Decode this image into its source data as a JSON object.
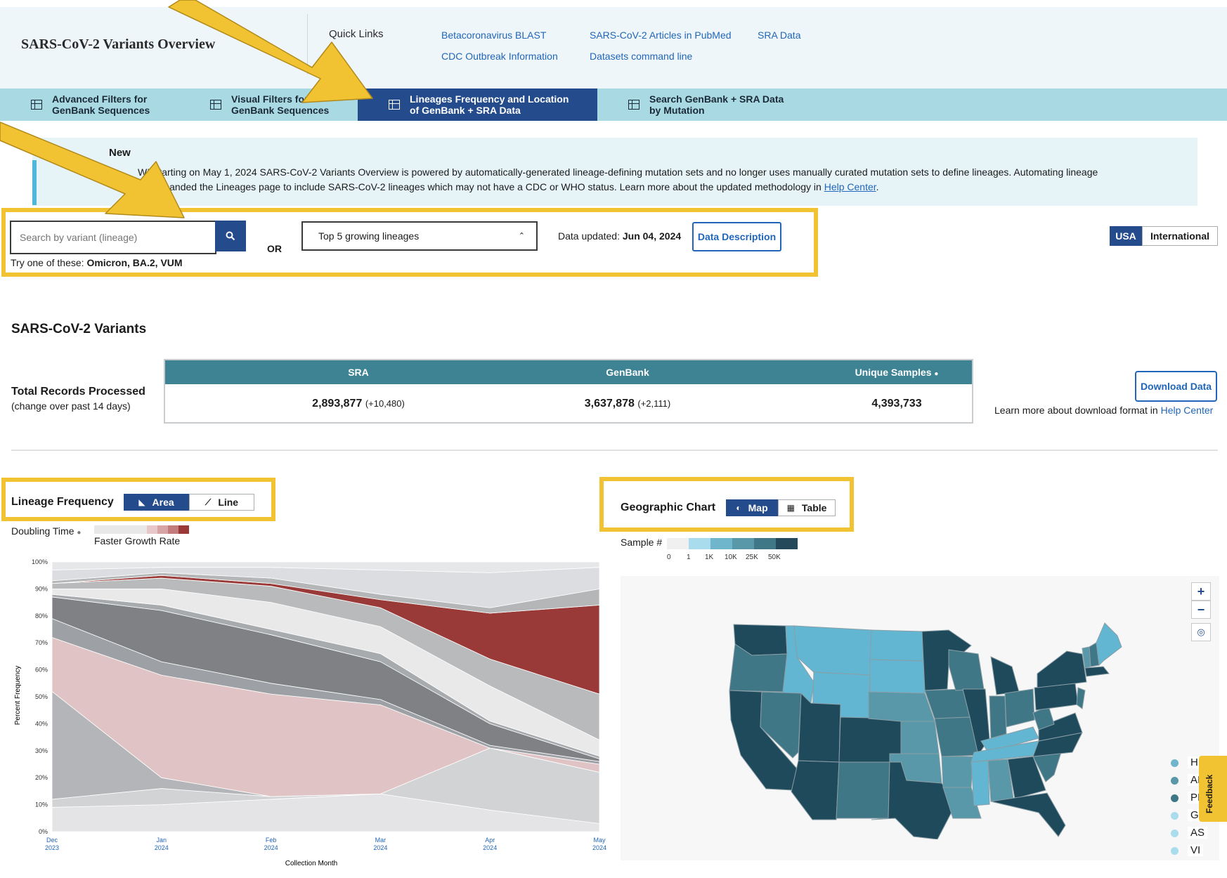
{
  "header": {
    "app_title": "SARS-CoV-2 Variants Overview",
    "quick_links_label": "Quick Links",
    "quick_links": [
      "Betacoronavirus BLAST",
      "SARS-CoV-2 Articles in PubMed",
      "SRA Data",
      "CDC Outbreak Information",
      "Datasets command line"
    ]
  },
  "tabs": [
    {
      "line1": "Advanced Filters for",
      "line2": "GenBank Sequences",
      "active": false
    },
    {
      "line1": "Visual Filters for",
      "line2": "GenBank Sequences",
      "active": false
    },
    {
      "line1": "Lineages Frequency and Location",
      "line2": "of GenBank + SRA Data",
      "active": true
    },
    {
      "line1": "Search GenBank + SRA Data",
      "line2": "by Mutation",
      "active": false
    }
  ],
  "notice": {
    "title": "New",
    "line1": "W! Starting on May 1, 2024 SARS-CoV-2 Variants Overview is powered by automatically-generated lineage-defining mutation sets and no longer uses manually curated mutation sets to define lineages. Automating lineage",
    "line2_prefix": "ion expanded the Lineages page to include SARS-CoV-2 lineages which may not have a CDC or WHO status. Learn more about the updated methodology in",
    "help_link": "Help Center",
    "line2_suffix": "."
  },
  "search": {
    "placeholder": "Search by variant (lineage)",
    "try_prefix": "Try one of these:",
    "try_examples": "Omicron, BA.2, VUM",
    "or_label": "OR",
    "select_value": "Top 5 growing lineages",
    "data_updated_label": "Data updated:",
    "data_updated_value": "Jun 04, 2024",
    "data_description_label": "Data Description"
  },
  "region_toggle": {
    "usa": "USA",
    "international": "International"
  },
  "summary": {
    "heading": "SARS-CoV-2 Variants",
    "row_label": "Total Records Processed",
    "row_sublabel": "(change over past 14 days)",
    "columns": [
      {
        "header": "SRA",
        "value": "2,893,877",
        "delta": "(+10,480)"
      },
      {
        "header": "GenBank",
        "value": "3,637,878",
        "delta": "(+2,111)"
      },
      {
        "header": "Unique Samples",
        "value": "4,393,733",
        "delta": ""
      }
    ],
    "download_label": "Download Data",
    "download_note_prefix": "Learn more about download format in",
    "download_note_link": "Help Center"
  },
  "lineage_frequency": {
    "title": "Lineage Frequency",
    "area_label": "Area",
    "line_label": "Line",
    "doubling_label": "Doubling Time",
    "faster_label": "Faster Growth Rate"
  },
  "geographic": {
    "title": "Geographic Chart",
    "map_label": "Map",
    "table_label": "Table",
    "sample_label": "Sample #",
    "legend_ticks": [
      "0",
      "1",
      "1K",
      "10K",
      "25K",
      "50K"
    ],
    "legend_colors": [
      "#f0f0f0",
      "#a9dcec",
      "#6fb6cc",
      "#5998a9",
      "#3f7787",
      "#23495a"
    ],
    "territories": [
      "H",
      "AI",
      "PI",
      "GU",
      "AS",
      "VI"
    ],
    "feedback_label": "Feedback"
  },
  "chart_data": {
    "type": "area",
    "xlabel": "Collection Month",
    "ylabel": "Percent Frequency",
    "x": [
      "Dec 2023",
      "Jan 2024",
      "Feb 2024",
      "Mar 2024",
      "Apr 2024",
      "May 2024"
    ],
    "x_ticks": [
      [
        "Dec",
        "2023"
      ],
      [
        "Jan",
        "2024"
      ],
      [
        "Feb",
        "2024"
      ],
      [
        "Mar",
        "2024"
      ],
      [
        "Apr",
        "2024"
      ],
      [
        "May",
        "2024"
      ]
    ],
    "y_ticks": [
      "100%",
      "90%",
      "80%",
      "70%",
      "60%",
      "50%",
      "40%",
      "30%",
      "20%",
      "10%",
      "0%"
    ],
    "ylim": [
      0,
      100
    ],
    "stacked_boundaries_percent": [
      [
        9,
        10,
        12,
        14,
        8,
        3
      ],
      [
        12,
        16,
        13,
        15,
        31,
        22
      ],
      [
        52,
        20,
        13,
        14,
        31,
        22
      ],
      [
        72,
        58,
        51,
        47,
        31,
        25
      ],
      [
        79,
        63,
        55,
        49,
        32,
        26
      ],
      [
        87,
        82,
        73,
        63,
        40,
        27
      ],
      [
        88,
        84,
        75,
        66,
        41,
        28
      ],
      [
        90,
        90,
        85,
        76,
        54,
        34
      ],
      [
        92,
        94,
        91,
        83,
        64,
        51
      ],
      [
        92,
        95,
        92,
        86,
        81,
        84
      ],
      [
        93,
        96,
        94,
        88,
        83,
        90
      ],
      [
        97,
        98,
        98,
        97,
        96,
        98
      ],
      [
        100,
        100,
        100,
        100,
        100,
        100
      ]
    ],
    "band_colors": [
      "#e4e4e6",
      "#d2d3d5",
      "#b3b5b8",
      "#e0c4c5",
      "#9da0a4",
      "#7f8185",
      "#a8abae",
      "#e9e9ea",
      "#b8babc",
      "#9a3a38",
      "#b4b6b8",
      "#dcdde0",
      "#e6e7e9"
    ]
  },
  "colors": {
    "accent_blue": "#244c8c",
    "tab_bar": "#a9d9e3",
    "table_header": "#3e8394",
    "highlight": "#f1c231",
    "growth_red": "#9a3a38"
  }
}
